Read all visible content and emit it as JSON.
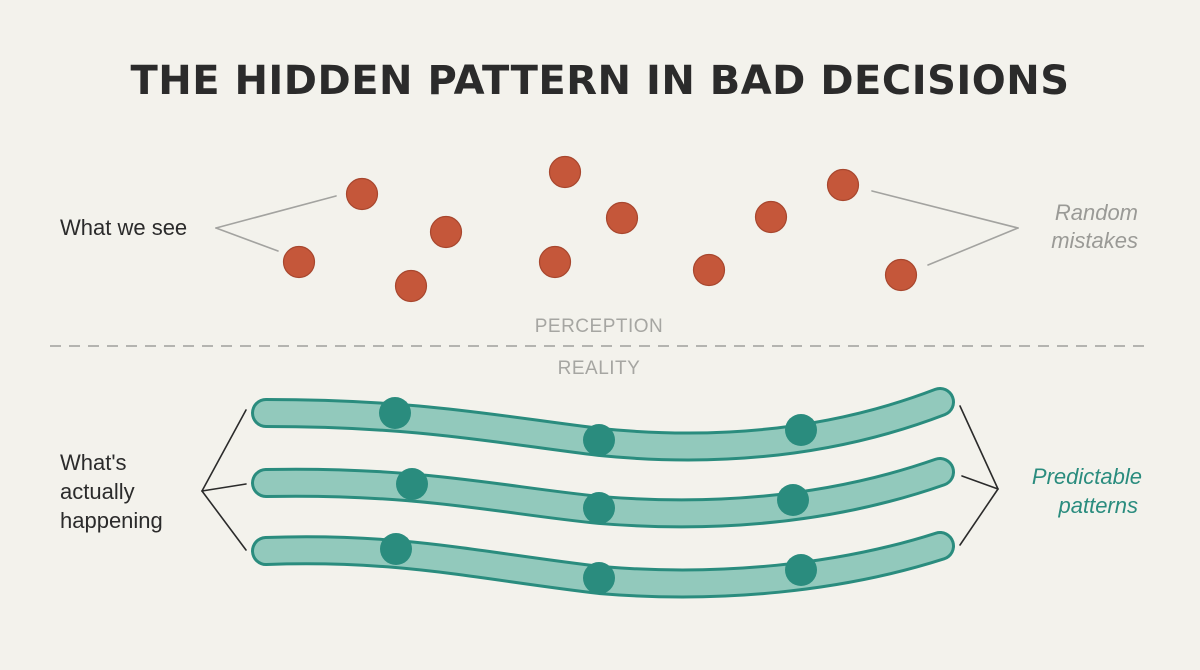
{
  "title": "THE HIDDEN PATTERN IN BAD DECISIONS",
  "perception": {
    "left_label": "What we see",
    "right_label_lines": [
      "Random",
      "mistakes"
    ]
  },
  "divider": {
    "top_label": "PERCEPTION",
    "bottom_label": "REALITY"
  },
  "reality": {
    "left_label_lines": [
      "What's",
      "actually",
      "happening"
    ],
    "right_label_lines": [
      "Predictable",
      "patterns"
    ]
  },
  "colors": {
    "background": "#f3f2ec",
    "title": "#2b2b2b",
    "mistake_dot": "#c5573a",
    "mistake_dot_stroke": "#a8472e",
    "pattern_fill": "#92c9bc",
    "pattern_stroke": "#2a8c7e",
    "pattern_node": "#2a8c7e",
    "muted_text": "#9a9a96",
    "divider": "#b4b4b0"
  },
  "icons": {
    "mistake_dot": "filled-circle",
    "pattern_band": "curved-rounded-band",
    "pattern_node": "filled-circle",
    "bracket": "chevron-bracket"
  }
}
